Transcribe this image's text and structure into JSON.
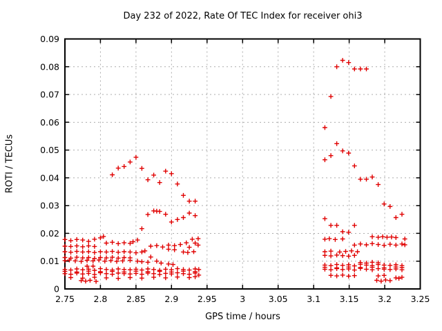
{
  "chart_data": {
    "type": "scatter",
    "title": "Day 232 of 2022, Rate Of TEC Index for receiver ohi3",
    "xlabel": "GPS time / hours",
    "ylabel": "ROTI / TECUs",
    "xlim": [
      2.75,
      3.25
    ],
    "ylim": [
      0,
      0.09
    ],
    "grid": true,
    "legend": "none",
    "marker": "plus",
    "colors": {
      "marker": "#e00000",
      "grid": "#ababab",
      "axis": "#000000"
    },
    "xticks": {
      "values": [
        2.75,
        2.8,
        2.85,
        2.9,
        2.95,
        3.0,
        3.05,
        3.1,
        3.15,
        3.2,
        3.25
      ],
      "labels": [
        "2.75",
        "2.8",
        "2.85",
        "2.9",
        "2.95",
        "3",
        "3.05",
        "3.1",
        "3.15",
        "3.2",
        "3.25"
      ]
    },
    "yticks": {
      "values": [
        0,
        0.01,
        0.02,
        0.03,
        0.04,
        0.05,
        0.06,
        0.07,
        0.08,
        0.09
      ],
      "labels": [
        "0",
        "0.01",
        "0.02",
        "0.03",
        "0.04",
        "0.05",
        "0.06",
        "0.07",
        "0.08",
        "0.09"
      ]
    },
    "points": [
      [
        2.8167,
        0.0411
      ],
      [
        2.825,
        0.0435
      ],
      [
        2.8333,
        0.0441
      ],
      [
        2.8417,
        0.0457
      ],
      [
        2.85,
        0.0474
      ],
      [
        2.8583,
        0.0434
      ],
      [
        2.8667,
        0.0393
      ],
      [
        2.875,
        0.041
      ],
      [
        2.8833,
        0.0383
      ],
      [
        2.8917,
        0.0424
      ],
      [
        2.9,
        0.0415
      ],
      [
        2.9083,
        0.0378
      ],
      [
        2.9167,
        0.0337
      ],
      [
        2.925,
        0.0316
      ],
      [
        2.9333,
        0.0316
      ],
      [
        2.8583,
        0.0217
      ],
      [
        2.8667,
        0.0268
      ],
      [
        2.875,
        0.0281
      ],
      [
        2.8792,
        0.028
      ],
      [
        2.8833,
        0.0279
      ],
      [
        2.8917,
        0.0269
      ],
      [
        2.9,
        0.0241
      ],
      [
        2.9083,
        0.025
      ],
      [
        2.9167,
        0.0257
      ],
      [
        2.925,
        0.0273
      ],
      [
        2.9333,
        0.0264
      ],
      [
        2.75,
        0.0178
      ],
      [
        2.7583,
        0.0174
      ],
      [
        2.7667,
        0.0178
      ],
      [
        2.775,
        0.0176
      ],
      [
        2.7833,
        0.0171
      ],
      [
        2.7917,
        0.0179
      ],
      [
        2.8,
        0.0184
      ],
      [
        2.8042,
        0.0189
      ],
      [
        2.8083,
        0.0165
      ],
      [
        2.8167,
        0.0168
      ],
      [
        2.825,
        0.0163
      ],
      [
        2.8333,
        0.0166
      ],
      [
        2.8417,
        0.0164
      ],
      [
        2.8458,
        0.017
      ],
      [
        2.8521,
        0.0176
      ],
      [
        2.8708,
        0.0154
      ],
      [
        2.8792,
        0.0156
      ],
      [
        2.8875,
        0.0151
      ],
      [
        2.8958,
        0.0158
      ],
      [
        2.8958,
        0.0143
      ],
      [
        2.9042,
        0.0156
      ],
      [
        2.9042,
        0.0141
      ],
      [
        2.9125,
        0.016
      ],
      [
        2.9208,
        0.0166
      ],
      [
        2.925,
        0.015
      ],
      [
        2.9292,
        0.0179
      ],
      [
        2.9333,
        0.0165
      ],
      [
        2.9375,
        0.0158
      ],
      [
        2.9375,
        0.0181
      ],
      [
        2.75,
        0.0154
      ],
      [
        2.7583,
        0.0153
      ],
      [
        2.7667,
        0.0155
      ],
      [
        2.775,
        0.0152
      ],
      [
        2.7833,
        0.0155
      ],
      [
        2.7917,
        0.0153
      ],
      [
        2.75,
        0.0134
      ],
      [
        2.7583,
        0.0132
      ],
      [
        2.7667,
        0.0135
      ],
      [
        2.775,
        0.0133
      ],
      [
        2.7833,
        0.0134
      ],
      [
        2.7917,
        0.0131
      ],
      [
        2.8,
        0.0134
      ],
      [
        2.8083,
        0.0133
      ],
      [
        2.8167,
        0.0135
      ],
      [
        2.825,
        0.0132
      ],
      [
        2.8333,
        0.0134
      ],
      [
        2.8417,
        0.0133
      ],
      [
        2.85,
        0.013
      ],
      [
        2.8583,
        0.0133
      ],
      [
        2.8625,
        0.0137
      ],
      [
        2.9167,
        0.0133
      ],
      [
        2.9229,
        0.0131
      ],
      [
        2.9312,
        0.0134
      ],
      [
        2.75,
        0.0113
      ],
      [
        2.7583,
        0.0111
      ],
      [
        2.7667,
        0.0114
      ],
      [
        2.775,
        0.0112
      ],
      [
        2.7833,
        0.0113
      ],
      [
        2.7917,
        0.011
      ],
      [
        2.8,
        0.0113
      ],
      [
        2.8083,
        0.0112
      ],
      [
        2.8167,
        0.0114
      ],
      [
        2.825,
        0.0111
      ],
      [
        2.8333,
        0.0113
      ],
      [
        2.8417,
        0.0112
      ],
      [
        2.8708,
        0.0115
      ],
      [
        2.75,
        0.0102
      ],
      [
        2.7562,
        0.0104
      ],
      [
        2.7646,
        0.0101
      ],
      [
        2.7729,
        0.0099
      ],
      [
        2.7812,
        0.0103
      ],
      [
        2.7896,
        0.0101
      ],
      [
        2.7979,
        0.0104
      ],
      [
        2.8062,
        0.01
      ],
      [
        2.8146,
        0.0102
      ],
      [
        2.8229,
        0.0099
      ],
      [
        2.8312,
        0.0101
      ],
      [
        2.8417,
        0.0103
      ],
      [
        2.8521,
        0.01
      ],
      [
        2.8583,
        0.0098
      ],
      [
        2.8667,
        0.0096
      ],
      [
        2.8792,
        0.01
      ],
      [
        2.8854,
        0.0093
      ],
      [
        2.7812,
        0.0082
      ],
      [
        2.7896,
        0.0082
      ],
      [
        2.8958,
        0.009
      ],
      [
        2.9021,
        0.0088
      ],
      [
        2.75,
        0.007
      ],
      [
        2.7583,
        0.0068
      ],
      [
        2.7667,
        0.0072
      ],
      [
        2.775,
        0.0069
      ],
      [
        2.7833,
        0.0071
      ],
      [
        2.7917,
        0.0067
      ],
      [
        2.8,
        0.0073
      ],
      [
        2.8083,
        0.007
      ],
      [
        2.8167,
        0.0068
      ],
      [
        2.825,
        0.0072
      ],
      [
        2.8333,
        0.007
      ],
      [
        2.8417,
        0.0069
      ],
      [
        2.85,
        0.0071
      ],
      [
        2.8583,
        0.0068
      ],
      [
        2.8667,
        0.0072
      ],
      [
        2.875,
        0.007
      ],
      [
        2.8833,
        0.0067
      ],
      [
        2.8917,
        0.0071
      ],
      [
        2.9,
        0.0069
      ],
      [
        2.9083,
        0.0073
      ],
      [
        2.9167,
        0.007
      ],
      [
        2.925,
        0.0068
      ],
      [
        2.9333,
        0.0072
      ],
      [
        2.9383,
        0.007
      ],
      [
        2.75,
        0.0055
      ],
      [
        2.7583,
        0.0053
      ],
      [
        2.7667,
        0.0057
      ],
      [
        2.775,
        0.0054
      ],
      [
        2.7833,
        0.0056
      ],
      [
        2.7917,
        0.0052
      ],
      [
        2.8,
        0.0058
      ],
      [
        2.8083,
        0.0055
      ],
      [
        2.8167,
        0.0053
      ],
      [
        2.825,
        0.0057
      ],
      [
        2.8333,
        0.0055
      ],
      [
        2.8417,
        0.0054
      ],
      [
        2.85,
        0.0056
      ],
      [
        2.8583,
        0.0053
      ],
      [
        2.8667,
        0.0057
      ],
      [
        2.875,
        0.0055
      ],
      [
        2.8833,
        0.0052
      ],
      [
        2.8917,
        0.0056
      ],
      [
        2.9,
        0.0054
      ],
      [
        2.9083,
        0.0058
      ],
      [
        2.9167,
        0.0055
      ],
      [
        2.925,
        0.0053
      ],
      [
        2.9333,
        0.0057
      ],
      [
        2.9383,
        0.005
      ],
      [
        2.75,
        0.0063
      ],
      [
        2.7667,
        0.0061
      ],
      [
        2.7833,
        0.0064
      ],
      [
        2.8,
        0.0062
      ],
      [
        2.8167,
        0.0063
      ],
      [
        2.8333,
        0.0061
      ],
      [
        2.85,
        0.0064
      ],
      [
        2.8667,
        0.0062
      ],
      [
        2.8833,
        0.0063
      ],
      [
        2.9,
        0.0061
      ],
      [
        2.9167,
        0.0064
      ],
      [
        2.9333,
        0.0062
      ],
      [
        2.7583,
        0.0041
      ],
      [
        2.775,
        0.0039
      ],
      [
        2.7917,
        0.0042
      ],
      [
        2.8083,
        0.004
      ],
      [
        2.825,
        0.0038
      ],
      [
        2.8417,
        0.0041
      ],
      [
        2.8583,
        0.0039
      ],
      [
        2.875,
        0.0042
      ],
      [
        2.8917,
        0.004
      ],
      [
        2.9083,
        0.0043
      ],
      [
        2.925,
        0.0041
      ],
      [
        2.9333,
        0.0044
      ],
      [
        2.7729,
        0.003
      ],
      [
        2.7792,
        0.0028
      ],
      [
        2.7854,
        0.0031
      ],
      [
        2.7938,
        0.0027
      ],
      [
        3.1158,
        0.0581
      ],
      [
        3.1242,
        0.0693
      ],
      [
        3.1325,
        0.08
      ],
      [
        3.1408,
        0.0823
      ],
      [
        3.1492,
        0.0815
      ],
      [
        3.1575,
        0.0792
      ],
      [
        3.1658,
        0.0792
      ],
      [
        3.1742,
        0.0792
      ],
      [
        3.1158,
        0.0465
      ],
      [
        3.1242,
        0.048
      ],
      [
        3.1325,
        0.0523
      ],
      [
        3.1408,
        0.0497
      ],
      [
        3.1492,
        0.0489
      ],
      [
        3.1575,
        0.0443
      ],
      [
        3.1658,
        0.0395
      ],
      [
        3.1742,
        0.0395
      ],
      [
        3.1825,
        0.0403
      ],
      [
        3.1908,
        0.0376
      ],
      [
        3.1992,
        0.0306
      ],
      [
        3.2075,
        0.0297
      ],
      [
        3.2158,
        0.0257
      ],
      [
        3.2242,
        0.0269
      ],
      [
        3.1158,
        0.0253
      ],
      [
        3.1242,
        0.0229
      ],
      [
        3.1325,
        0.0229
      ],
      [
        3.1408,
        0.0206
      ],
      [
        3.1492,
        0.0204
      ],
      [
        3.1575,
        0.0229
      ],
      [
        3.1825,
        0.0188
      ],
      [
        3.1908,
        0.0186
      ],
      [
        3.1971,
        0.0188
      ],
      [
        3.2033,
        0.0186
      ],
      [
        3.2096,
        0.0187
      ],
      [
        3.2158,
        0.0185
      ],
      [
        3.1158,
        0.0179
      ],
      [
        3.1221,
        0.0181
      ],
      [
        3.1304,
        0.0178
      ],
      [
        3.1408,
        0.018
      ],
      [
        3.1575,
        0.0158
      ],
      [
        3.1658,
        0.0162
      ],
      [
        3.1742,
        0.0159
      ],
      [
        3.1825,
        0.0163
      ],
      [
        3.1908,
        0.016
      ],
      [
        3.1992,
        0.0157
      ],
      [
        3.2075,
        0.0161
      ],
      [
        3.2158,
        0.0158
      ],
      [
        3.2242,
        0.0162
      ],
      [
        3.2283,
        0.0159
      ],
      [
        3.2283,
        0.018
      ],
      [
        3.1158,
        0.0134
      ],
      [
        3.1242,
        0.0136
      ],
      [
        3.1367,
        0.0133
      ],
      [
        3.145,
        0.0135
      ],
      [
        3.1533,
        0.0137
      ],
      [
        3.1617,
        0.0134
      ],
      [
        3.1158,
        0.0121
      ],
      [
        3.1242,
        0.0119
      ],
      [
        3.1325,
        0.0122
      ],
      [
        3.1408,
        0.012
      ],
      [
        3.1492,
        0.0118
      ],
      [
        3.1575,
        0.0121
      ],
      [
        3.1658,
        0.0095
      ],
      [
        3.1742,
        0.0093
      ],
      [
        3.1825,
        0.0096
      ],
      [
        3.1908,
        0.0094
      ],
      [
        3.1158,
        0.0086
      ],
      [
        3.1242,
        0.0084
      ],
      [
        3.1325,
        0.0088
      ],
      [
        3.1408,
        0.0085
      ],
      [
        3.1492,
        0.0087
      ],
      [
        3.1575,
        0.0083
      ],
      [
        3.1658,
        0.0089
      ],
      [
        3.1742,
        0.0086
      ],
      [
        3.1825,
        0.0084
      ],
      [
        3.1908,
        0.0088
      ],
      [
        3.1992,
        0.0086
      ],
      [
        3.2075,
        0.0085
      ],
      [
        3.2158,
        0.0087
      ],
      [
        3.2242,
        0.0084
      ],
      [
        3.1158,
        0.0071
      ],
      [
        3.1242,
        0.0069
      ],
      [
        3.1325,
        0.0073
      ],
      [
        3.1408,
        0.007
      ],
      [
        3.1492,
        0.0072
      ],
      [
        3.1575,
        0.0068
      ],
      [
        3.1658,
        0.0074
      ],
      [
        3.1742,
        0.0071
      ],
      [
        3.1825,
        0.0069
      ],
      [
        3.1908,
        0.0073
      ],
      [
        3.1992,
        0.0071
      ],
      [
        3.2075,
        0.007
      ],
      [
        3.2158,
        0.0072
      ],
      [
        3.2242,
        0.0069
      ],
      [
        3.1158,
        0.0078
      ],
      [
        3.1325,
        0.0076
      ],
      [
        3.1492,
        0.0079
      ],
      [
        3.1658,
        0.0077
      ],
      [
        3.1825,
        0.0078
      ],
      [
        3.1992,
        0.0076
      ],
      [
        3.2158,
        0.0079
      ],
      [
        3.2242,
        0.0077
      ],
      [
        3.1242,
        0.0049
      ],
      [
        3.1325,
        0.0047
      ],
      [
        3.1408,
        0.005
      ],
      [
        3.1492,
        0.0046
      ],
      [
        3.1575,
        0.0048
      ],
      [
        3.1908,
        0.0047
      ],
      [
        3.1992,
        0.0049
      ],
      [
        3.1888,
        0.0031
      ],
      [
        3.195,
        0.0028
      ],
      [
        3.2013,
        0.0032
      ],
      [
        3.2075,
        0.003
      ],
      [
        3.2158,
        0.004
      ],
      [
        3.22,
        0.0038
      ],
      [
        3.2242,
        0.0042
      ]
    ]
  }
}
